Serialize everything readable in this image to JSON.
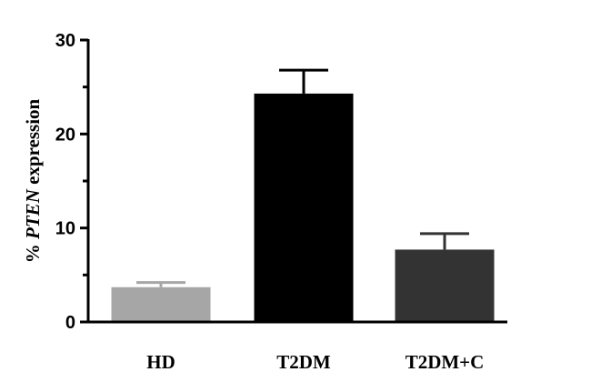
{
  "chart_data": {
    "type": "bar",
    "categories": [
      "HD",
      "T2DM",
      "T2DM+C"
    ],
    "values": [
      3.7,
      24.3,
      7.7
    ],
    "errors": [
      0.5,
      2.5,
      1.7
    ],
    "ylim": [
      0,
      30
    ],
    "yticks": [
      0,
      10,
      20,
      30
    ],
    "ylabel_prefix": "% ",
    "ylabel_italic": "PTEN",
    "ylabel_suffix": " expression",
    "xlabel": "",
    "title": "",
    "grid": false,
    "legend": "none",
    "bar_colors": [
      "#a6a6a6",
      "#000000",
      "#333333"
    ]
  }
}
